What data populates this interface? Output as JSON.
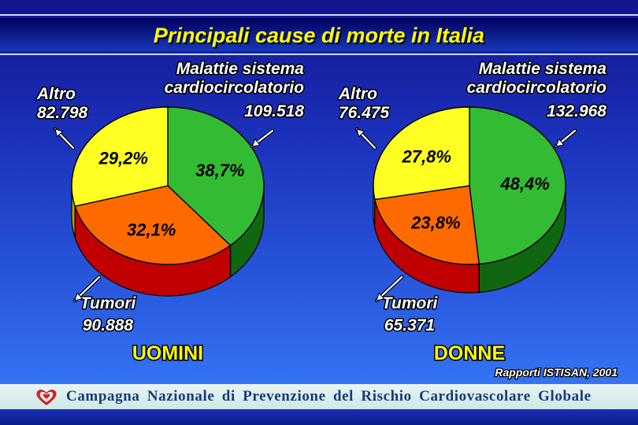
{
  "title": "Principali cause di morte in Italia",
  "source": "Rapporti ISTISAN, 2001",
  "footer": {
    "text": "Campagna Nazionale di Prevenzione del Rischio Cardiovascolare Globale",
    "logo_icon": "heart-ribbon-icon"
  },
  "colors": {
    "background": "#2a5be0",
    "title": "#ffff00",
    "cardio": "#33bb33",
    "tumori": "#ff6a00",
    "altro": "#ffff22"
  },
  "chart_data": [
    {
      "type": "pie",
      "title": "UOMINI",
      "slices": [
        {
          "label": "Malattie sistema cardiocircolatorio",
          "label_lines": [
            "Malattie sistema",
            "cardiocircolatorio"
          ],
          "count": "109.518",
          "value": 38.7,
          "pct_label": "38,7%",
          "color": "#33bb33",
          "side": "#116611"
        },
        {
          "label": "Tumori",
          "label_lines": [
            "Tumori"
          ],
          "count": "90.888",
          "value": 32.1,
          "pct_label": "32,1%",
          "color": "#ff6a00",
          "side": "#c00000"
        },
        {
          "label": "Altro",
          "label_lines": [
            "Altro"
          ],
          "count": "82.798",
          "value": 29.2,
          "pct_label": "29,2%",
          "color": "#ffff22",
          "side": "#b8a800"
        }
      ]
    },
    {
      "type": "pie",
      "title": "DONNE",
      "slices": [
        {
          "label": "Malattie sistema cardiocircolatorio",
          "label_lines": [
            "Malattie sistema",
            "cardiocircolatorio"
          ],
          "count": "132.968",
          "value": 48.4,
          "pct_label": "48,4%",
          "color": "#33bb33",
          "side": "#116611"
        },
        {
          "label": "Tumori",
          "label_lines": [
            "Tumori"
          ],
          "count": "65.371",
          "value": 23.8,
          "pct_label": "23,8%",
          "color": "#ff6a00",
          "side": "#c00000"
        },
        {
          "label": "Altro",
          "label_lines": [
            "Altro"
          ],
          "count": "76.475",
          "value": 27.8,
          "pct_label": "27,8%",
          "color": "#ffff22",
          "side": "#b8a800"
        }
      ]
    }
  ]
}
